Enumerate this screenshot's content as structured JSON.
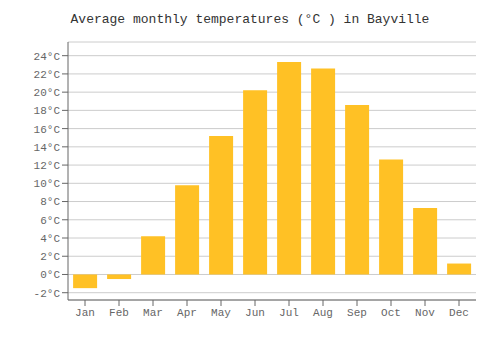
{
  "chart_data": {
    "type": "bar",
    "title": "Average monthly temperatures (°C ) in Bayville",
    "categories": [
      "Jan",
      "Feb",
      "Mar",
      "Apr",
      "May",
      "Jun",
      "Jul",
      "Aug",
      "Sep",
      "Oct",
      "Nov",
      "Dec"
    ],
    "values": [
      -1.5,
      -0.5,
      4.2,
      9.8,
      15.2,
      20.2,
      23.3,
      22.6,
      18.6,
      12.6,
      7.3,
      1.2
    ],
    "color": "#FFC125",
    "ylim": [
      -2.8,
      25.5
    ],
    "yticks": [
      {
        "value": -2,
        "label": "-2°C"
      },
      {
        "value": 0,
        "label": "0°C"
      },
      {
        "value": 2,
        "label": "2°C"
      },
      {
        "value": 4,
        "label": "4°C"
      },
      {
        "value": 6,
        "label": "6°C"
      },
      {
        "value": 8,
        "label": "8°C"
      },
      {
        "value": 10,
        "label": "10°C"
      },
      {
        "value": 12,
        "label": "12°C"
      },
      {
        "value": 14,
        "label": "14°C"
      },
      {
        "value": 16,
        "label": "16°C"
      },
      {
        "value": 18,
        "label": "18°C"
      },
      {
        "value": 20,
        "label": "20°C"
      },
      {
        "value": 22,
        "label": "22°C"
      },
      {
        "value": 24,
        "label": "24°C"
      }
    ],
    "grid": true
  }
}
